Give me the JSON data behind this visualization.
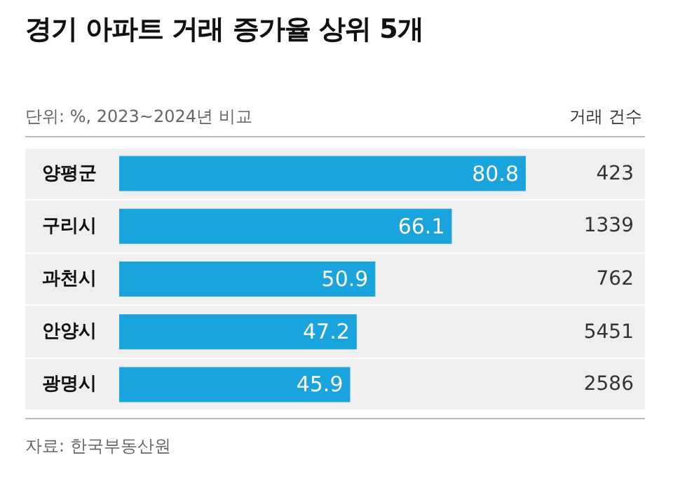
{
  "chart_data": {
    "type": "bar",
    "orientation": "horizontal",
    "title": "경기 아파트 거래 증가율 상위 5개",
    "subtitle": "단위: %, 2023~2024년 비교",
    "categories": [
      "양평군",
      "구리시",
      "과천시",
      "안양시",
      "광명시"
    ],
    "values": [
      80.8,
      66.1,
      50.9,
      47.2,
      45.9
    ],
    "color": "#1aa4dd",
    "data_labels": true,
    "annotations": [
      "거래 건수",
      "자료: 한국부동산원",
      "423",
      "1339",
      "762",
      "5451",
      "2586"
    ]
  }
}
